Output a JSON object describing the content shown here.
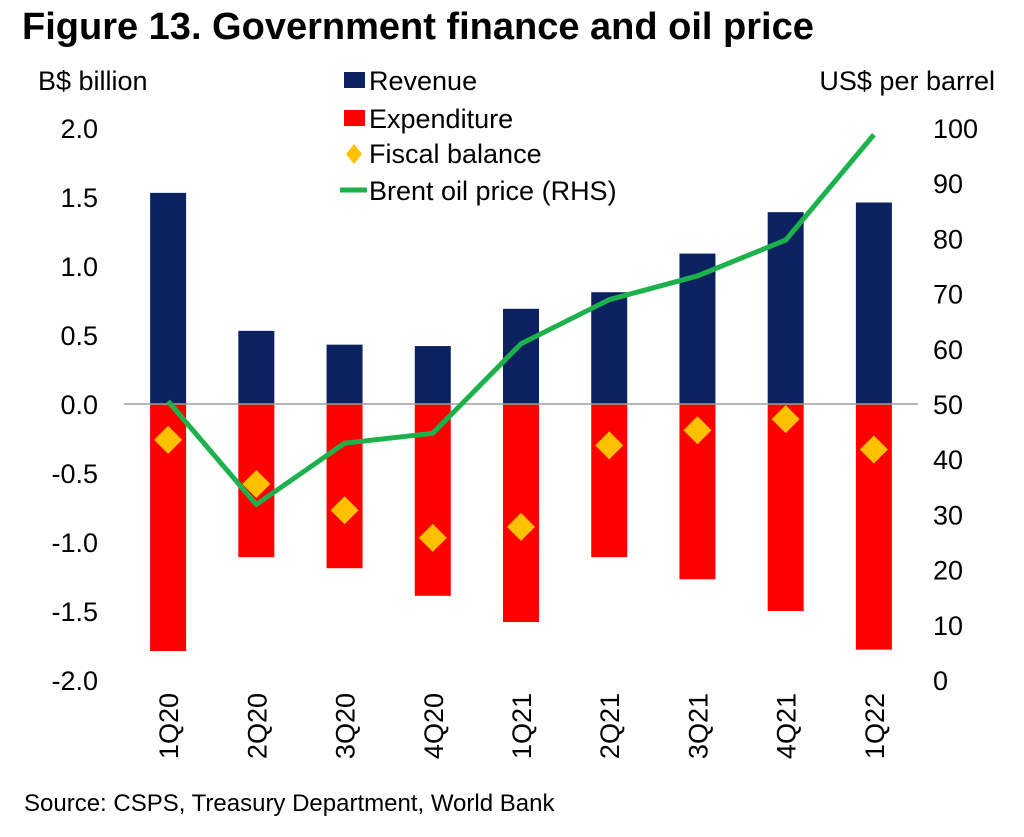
{
  "title": "Figure 13. Government finance and oil price",
  "source": "Source: CSPS, Treasury Department, World Bank",
  "colors": {
    "revenue": "#0c2260",
    "expenditure": "#ff0000",
    "fiscal_balance": "#ffc000",
    "brent": "#1db14b",
    "zero_line": "#9e9e9e"
  },
  "chart_data": {
    "type": "bar",
    "categories": [
      "1Q20",
      "2Q20",
      "3Q20",
      "4Q20",
      "1Q21",
      "2Q21",
      "3Q21",
      "4Q21",
      "1Q22"
    ],
    "left_axis": {
      "label": "B$ billion",
      "ylim": [
        -2.0,
        2.0
      ],
      "ticks": [
        "2.0",
        "1.5",
        "1.0",
        "0.5",
        "0.0",
        "-0.5",
        "-1.0",
        "-1.5",
        "-2.0"
      ],
      "tick_values": [
        2.0,
        1.5,
        1.0,
        0.5,
        0.0,
        -0.5,
        -1.0,
        -1.5,
        -2.0
      ]
    },
    "right_axis": {
      "label": "US$ per barrel",
      "ylim": [
        0,
        100
      ],
      "ticks": [
        "100",
        "90",
        "80",
        "70",
        "60",
        "50",
        "40",
        "30",
        "20",
        "10",
        "0"
      ],
      "tick_values": [
        100,
        90,
        80,
        70,
        60,
        50,
        40,
        30,
        20,
        10,
        0
      ]
    },
    "series": [
      {
        "name": "Revenue",
        "kind": "bar",
        "axis": "left",
        "values": [
          1.53,
          0.53,
          0.43,
          0.42,
          0.69,
          0.81,
          1.09,
          1.39,
          1.46
        ]
      },
      {
        "name": "Expenditure",
        "kind": "bar",
        "axis": "left",
        "values": [
          -1.79,
          -1.11,
          -1.19,
          -1.39,
          -1.58,
          -1.11,
          -1.27,
          -1.5,
          -1.78
        ]
      },
      {
        "name": "Fiscal balance",
        "kind": "diamond",
        "axis": "left",
        "values": [
          -0.26,
          -0.58,
          -0.77,
          -0.97,
          -0.89,
          -0.3,
          -0.19,
          -0.11,
          -0.33
        ]
      },
      {
        "name": "Brent oil price (RHS)",
        "kind": "line",
        "axis": "right",
        "values": [
          50.5,
          31.8,
          42.9,
          44.7,
          60.9,
          68.9,
          73.2,
          79.7,
          98.8
        ]
      }
    ],
    "legend_position": "top-center"
  }
}
